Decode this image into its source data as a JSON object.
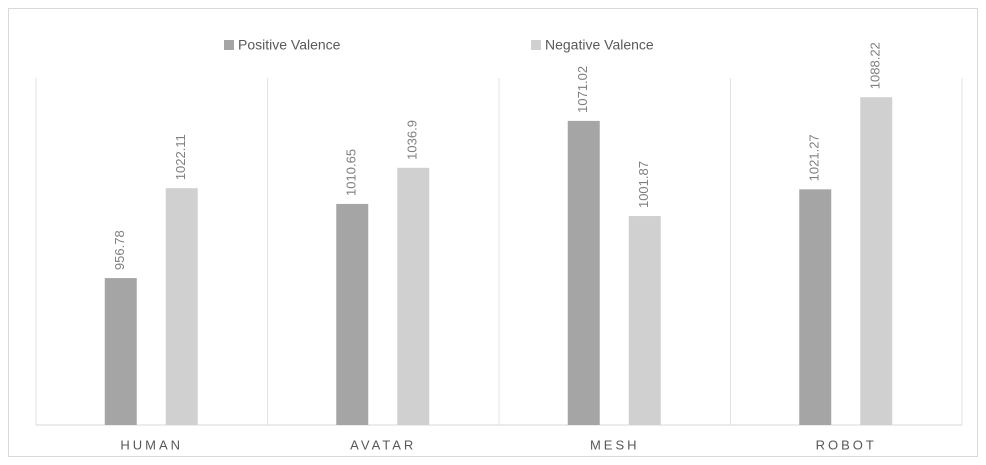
{
  "chart_data": {
    "type": "bar",
    "categories": [
      "HUMAN",
      "AVATAR",
      "MESH",
      "ROBOT"
    ],
    "series": [
      {
        "name": "Positive Valence",
        "color": "#a5a5a5",
        "values": [
          956.78,
          1010.65,
          1071.02,
          1021.27
        ]
      },
      {
        "name": "Negative Valence",
        "color": "#d0d0d0",
        "values": [
          1022.11,
          1036.9,
          1001.87,
          1088.22
        ]
      }
    ],
    "ylim": [
      850,
      1100
    ],
    "legend": "top"
  }
}
